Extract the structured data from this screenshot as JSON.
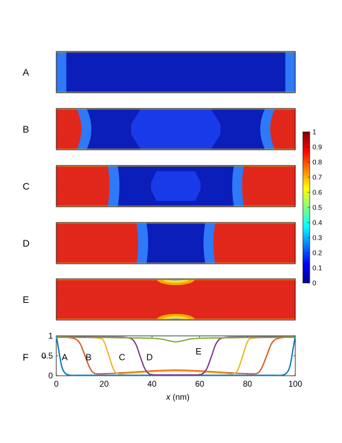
{
  "panels": [
    {
      "label": "A",
      "front": 0.0,
      "bulge": 0.0,
      "center": 0.0
    },
    {
      "label": "B",
      "front": 12.5,
      "bulge": 4.0,
      "center": 0.14
    },
    {
      "label": "C",
      "front": 23.0,
      "bulge": 1.5,
      "center": 0.12
    },
    {
      "label": "D",
      "front": 35.0,
      "bulge": 1.5,
      "center": 0.0
    },
    {
      "label": "E",
      "front": 50.0,
      "bulge": 0.0,
      "center": 0.85
    }
  ],
  "colorbar": {
    "ticks": [
      "0",
      "0.1",
      "0.2",
      "0.3",
      "0.4",
      "0.5",
      "0.6",
      "0.7",
      "0.8",
      "0.9",
      "1"
    ],
    "colormap": "jet",
    "min": 0,
    "max": 1
  },
  "chart_data": {
    "type": "line",
    "panel_label": "F",
    "xlabel": "x (nm)",
    "ylabel": "c",
    "xlim": [
      0,
      100
    ],
    "ylim": [
      0,
      1
    ],
    "xticks": [
      "0",
      "20",
      "40",
      "60",
      "80",
      "100"
    ],
    "yticks": [
      "0",
      "0.5",
      "1"
    ],
    "series": [
      {
        "name": "A",
        "color": "#0072BD",
        "x": [
          0,
          1,
          2,
          3,
          5,
          10,
          20,
          30,
          40,
          50,
          60,
          70,
          80,
          90,
          95,
          97,
          98,
          99,
          100
        ],
        "y": [
          1.0,
          0.65,
          0.3,
          0.12,
          0.02,
          0.01,
          0.01,
          0.01,
          0.01,
          0.01,
          0.01,
          0.01,
          0.01,
          0.01,
          0.02,
          0.12,
          0.3,
          0.65,
          1.0
        ]
      },
      {
        "name": "B",
        "color": "#D95319",
        "x": [
          0,
          5,
          8,
          10,
          12,
          14,
          16,
          20,
          30,
          40,
          50,
          60,
          70,
          80,
          84,
          86,
          88,
          90,
          92,
          95,
          100
        ],
        "y": [
          0.96,
          0.96,
          0.92,
          0.8,
          0.5,
          0.2,
          0.06,
          0.05,
          0.08,
          0.12,
          0.14,
          0.12,
          0.08,
          0.05,
          0.06,
          0.2,
          0.5,
          0.8,
          0.92,
          0.96,
          0.96
        ]
      },
      {
        "name": "C",
        "color": "#EDB120",
        "x": [
          0,
          10,
          18,
          20,
          22,
          24,
          26,
          30,
          40,
          50,
          60,
          70,
          74,
          76,
          78,
          80,
          82,
          90,
          100
        ],
        "y": [
          0.97,
          0.97,
          0.94,
          0.85,
          0.5,
          0.15,
          0.05,
          0.06,
          0.1,
          0.12,
          0.1,
          0.06,
          0.05,
          0.15,
          0.5,
          0.85,
          0.94,
          0.97,
          0.97
        ]
      },
      {
        "name": "D",
        "color": "#7E2F8E",
        "x": [
          0,
          20,
          30,
          33,
          35,
          37,
          39,
          42,
          50,
          58,
          61,
          63,
          65,
          67,
          70,
          80,
          100
        ],
        "y": [
          0.97,
          0.97,
          0.95,
          0.82,
          0.5,
          0.18,
          0.04,
          0.02,
          0.02,
          0.02,
          0.04,
          0.18,
          0.5,
          0.82,
          0.95,
          0.97,
          0.97
        ]
      },
      {
        "name": "E",
        "color": "#77AC30",
        "x": [
          0,
          10,
          20,
          30,
          40,
          44,
          47,
          50,
          53,
          56,
          60,
          70,
          80,
          90,
          100
        ],
        "y": [
          0.97,
          0.96,
          0.96,
          0.95,
          0.94,
          0.92,
          0.88,
          0.85,
          0.88,
          0.92,
          0.94,
          0.95,
          0.96,
          0.96,
          0.97
        ]
      }
    ],
    "annotations": [
      {
        "text": "A",
        "x": 3.5,
        "y": 0.47
      },
      {
        "text": "B",
        "x": 13.5,
        "y": 0.47
      },
      {
        "text": "C",
        "x": 27.5,
        "y": 0.47
      },
      {
        "text": "D",
        "x": 39,
        "y": 0.47
      },
      {
        "text": "E",
        "x": 59.5,
        "y": 0.62
      }
    ]
  }
}
